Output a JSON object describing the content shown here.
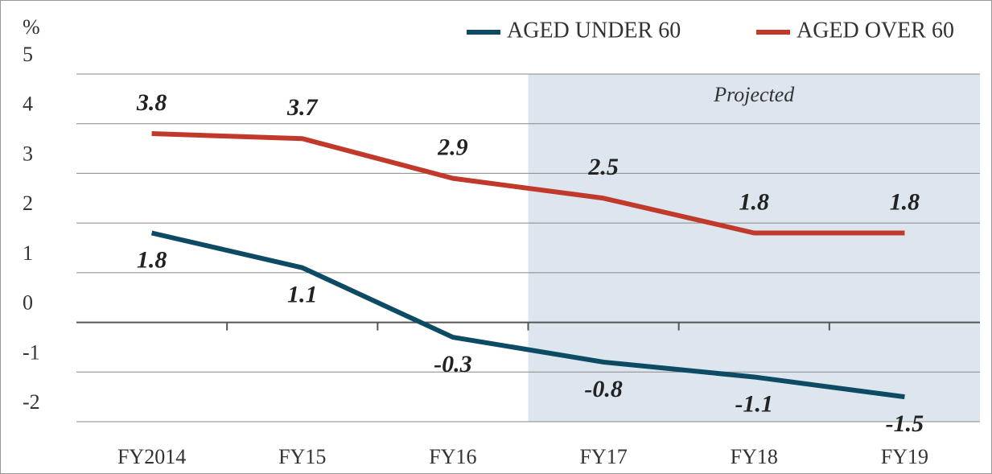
{
  "chart_data": {
    "type": "line",
    "y_label": "%",
    "annotation": "Projected",
    "categories": [
      "FY2014",
      "FY15",
      "FY16",
      "FY17",
      "FY18",
      "FY19"
    ],
    "series": [
      {
        "name": "AGED UNDER 60",
        "color": "#0d4a63",
        "values": [
          1.8,
          1.1,
          -0.3,
          -0.8,
          -1.1,
          -1.5
        ]
      },
      {
        "name": "AGED OVER 60",
        "color": "#c0392b",
        "values": [
          3.8,
          3.7,
          2.9,
          2.5,
          1.8,
          1.8
        ]
      }
    ],
    "ylim": [
      -2,
      5
    ],
    "yticks": [
      -2,
      -1,
      0,
      1,
      2,
      3,
      4,
      5
    ],
    "grid": true
  }
}
